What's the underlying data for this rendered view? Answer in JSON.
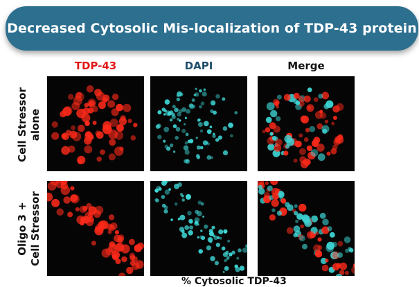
{
  "title": "Decreased Cytosolic Mis-localization of TDP-43 protein",
  "columns": [
    {
      "label": "TDP-43",
      "color": "#e01818"
    },
    {
      "label": "DAPI",
      "color": "#1f4e6b"
    },
    {
      "label": "Merge",
      "color": "#111111"
    }
  ],
  "rows": [
    {
      "label": "Cell Stressor\nalone"
    },
    {
      "label": "Oligo 3 +\nCell Stressor"
    }
  ],
  "footer": "% Cytosolic TDP-43",
  "colors": {
    "banner": "#2c6f8f",
    "tdp43": "#ff2a1a",
    "dapi": "#3fd6d6"
  }
}
